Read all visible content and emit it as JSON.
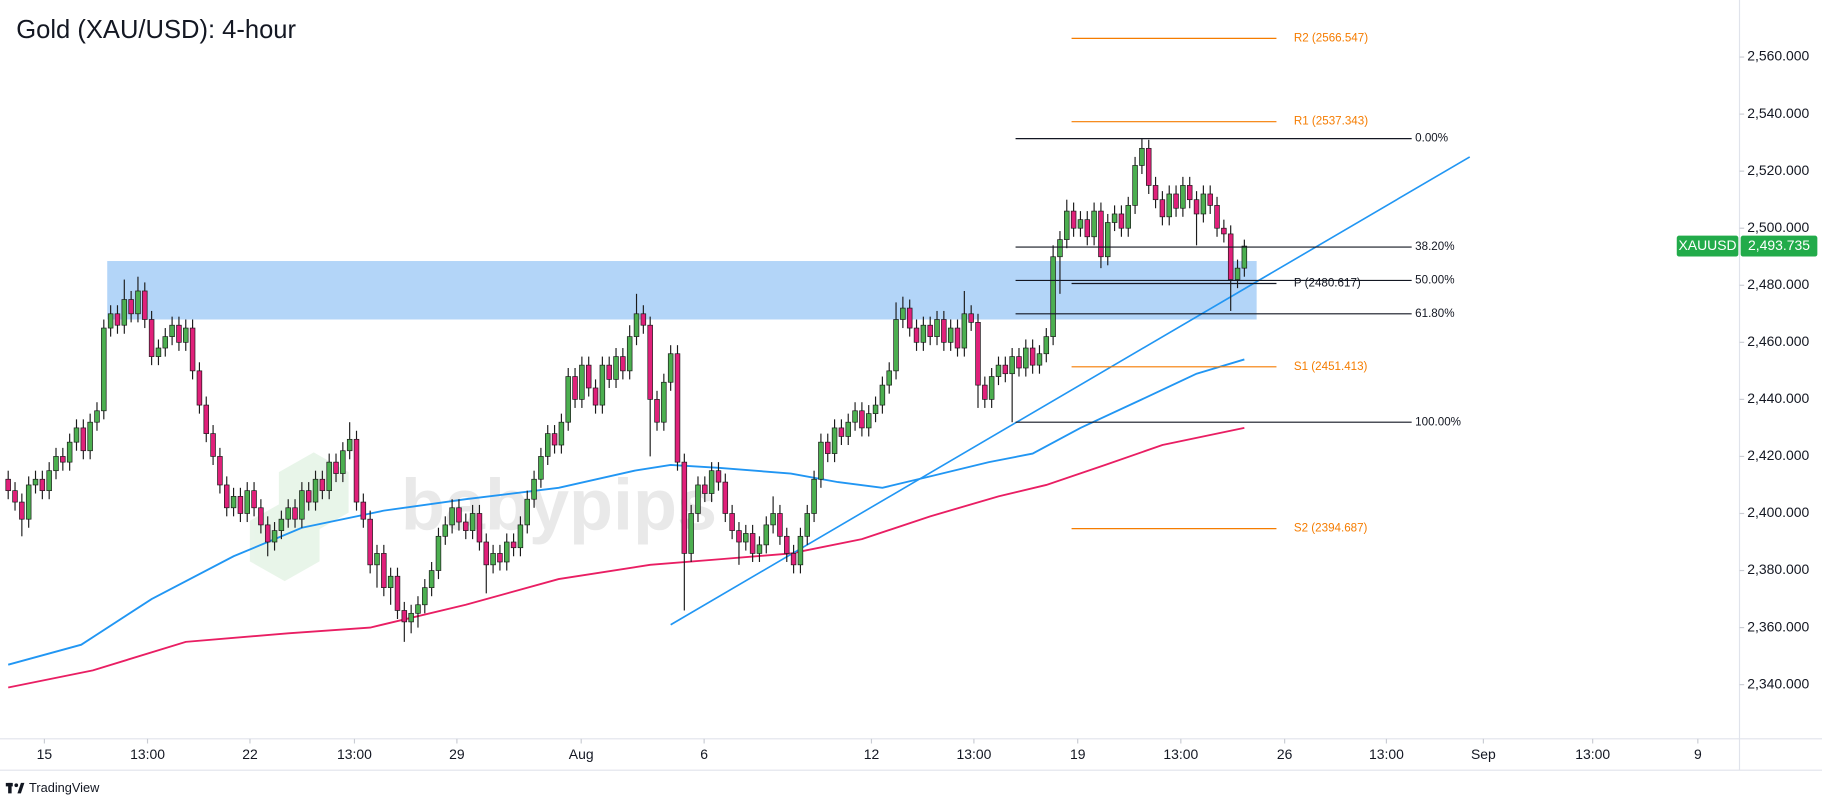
{
  "chart_data": {
    "type": "candlestick",
    "title": "Gold (XAU/USD): 4-hour",
    "watermark": "babypips",
    "footer": "TradingView",
    "xlim": [
      -1.2,
      253.5
    ],
    "ylim": [
      2321,
      2580
    ],
    "xticks": [
      {
        "value": 5.3,
        "label": "15"
      },
      {
        "value": 20.4,
        "label": "13:00"
      },
      {
        "value": 35.4,
        "label": "22"
      },
      {
        "value": 50.7,
        "label": "13:00"
      },
      {
        "value": 65.7,
        "label": "29"
      },
      {
        "value": 83.9,
        "label": "Aug"
      },
      {
        "value": 101.9,
        "label": "6"
      },
      {
        "value": 126.4,
        "label": "12"
      },
      {
        "value": 141.4,
        "label": "13:00"
      },
      {
        "value": 156.6,
        "label": "19"
      },
      {
        "value": 171.7,
        "label": "13:00"
      },
      {
        "value": 186.9,
        "label": "26"
      },
      {
        "value": 201.8,
        "label": "13:00"
      },
      {
        "value": 216,
        "label": "Sep"
      },
      {
        "value": 232,
        "label": "13:00"
      },
      {
        "value": 247.4,
        "label": "9"
      }
    ],
    "yticks": [
      {
        "value": 2340,
        "label": "2,340.000"
      },
      {
        "value": 2360,
        "label": "2,360.000"
      },
      {
        "value": 2380,
        "label": "2,380.000"
      },
      {
        "value": 2400,
        "label": "2,400.000"
      },
      {
        "value": 2420,
        "label": "2,420.000"
      },
      {
        "value": 2440,
        "label": "2,440.000"
      },
      {
        "value": 2460,
        "label": "2,460.000"
      },
      {
        "value": 2480,
        "label": "2,480.000"
      },
      {
        "value": 2500,
        "label": "2,500.000"
      },
      {
        "value": 2520,
        "label": "2,520.000"
      },
      {
        "value": 2540,
        "label": "2,540.000"
      },
      {
        "value": 2560,
        "label": "2,560.000"
      }
    ],
    "candles": {
      "name": "XAUUSD",
      "up_color": "#4caf50",
      "down_color": "#e0207a",
      "tag_color": "#22ab4a",
      "last_label": "2,493.735",
      "open": [
        2412,
        2408,
        2404,
        2398,
        2410,
        2412,
        2408,
        2415,
        2420,
        2418,
        2425,
        2430,
        2422,
        2432,
        2436,
        2465,
        2470,
        2466,
        2475,
        2470,
        2478,
        2468,
        2455,
        2458,
        2462,
        2466,
        2460,
        2465,
        2450,
        2438,
        2428,
        2420,
        2410,
        2402,
        2406,
        2400,
        2408,
        2402,
        2396,
        2390,
        2394,
        2398,
        2402,
        2398,
        2408,
        2404,
        2412,
        2408,
        2418,
        2414,
        2422,
        2426,
        2404,
        2398,
        2382,
        2386,
        2374,
        2378,
        2366,
        2362,
        2365,
        2368,
        2374,
        2380,
        2392,
        2396,
        2402,
        2397,
        2394,
        2400,
        2390,
        2382,
        2386,
        2383,
        2390,
        2388,
        2396,
        2405,
        2412,
        2420,
        2428,
        2424,
        2432,
        2448,
        2440,
        2452,
        2444,
        2438,
        2452,
        2447,
        2455,
        2450,
        2462,
        2470,
        2466,
        2440,
        2432,
        2446,
        2456,
        2418,
        2386,
        2400,
        2410,
        2407,
        2415,
        2411,
        2400,
        2394,
        2390,
        2393,
        2386,
        2389,
        2396,
        2400,
        2392,
        2386,
        2382,
        2392,
        2400,
        2412,
        2425,
        2421,
        2430,
        2427,
        2432,
        2436,
        2430,
        2435,
        2438,
        2445,
        2450,
        2468,
        2472,
        2465,
        2460,
        2466,
        2462,
        2468,
        2460,
        2465,
        2458,
        2470,
        2467,
        2445,
        2440,
        2448,
        2452,
        2449,
        2455,
        2451,
        2458,
        2452,
        2456,
        2462,
        2490,
        2496,
        2506,
        2500,
        2503,
        2497,
        2506,
        2490,
        2502,
        2505,
        2500,
        2508,
        2522,
        2528,
        2515,
        2510,
        2504,
        2512,
        2507,
        2515,
        2510,
        2505,
        2512,
        2508,
        2500,
        2498,
        2482,
        2486
      ],
      "high": [
        2415,
        2411,
        2407,
        2413,
        2415,
        2415,
        2418,
        2423,
        2423,
        2428,
        2433,
        2433,
        2435,
        2439,
        2468,
        2473,
        2473,
        2482,
        2478,
        2483,
        2481,
        2471,
        2461,
        2465,
        2469,
        2469,
        2468,
        2468,
        2453,
        2441,
        2431,
        2423,
        2413,
        2409,
        2409,
        2411,
        2411,
        2405,
        2399,
        2397,
        2401,
        2405,
        2405,
        2411,
        2411,
        2415,
        2415,
        2421,
        2421,
        2425,
        2432,
        2429,
        2407,
        2401,
        2389,
        2389,
        2381,
        2381,
        2369,
        2368,
        2371,
        2377,
        2383,
        2395,
        2399,
        2405,
        2405,
        2400,
        2403,
        2403,
        2393,
        2389,
        2389,
        2393,
        2393,
        2399,
        2408,
        2415,
        2423,
        2431,
        2431,
        2435,
        2451,
        2451,
        2455,
        2455,
        2447,
        2455,
        2455,
        2458,
        2458,
        2466,
        2477,
        2473,
        2469,
        2443,
        2449,
        2459,
        2459,
        2421,
        2403,
        2413,
        2413,
        2418,
        2418,
        2414,
        2403,
        2397,
        2396,
        2396,
        2392,
        2399,
        2406,
        2403,
        2395,
        2389,
        2395,
        2403,
        2415,
        2428,
        2428,
        2433,
        2433,
        2435,
        2439,
        2439,
        2438,
        2441,
        2448,
        2453,
        2474,
        2476,
        2475,
        2468,
        2469,
        2469,
        2471,
        2471,
        2468,
        2468,
        2478,
        2473,
        2470,
        2448,
        2451,
        2455,
        2455,
        2458,
        2458,
        2461,
        2461,
        2459,
        2465,
        2494,
        2499,
        2510,
        2509,
        2506,
        2506,
        2509,
        2509,
        2505,
        2508,
        2508,
        2511,
        2525,
        2531.4,
        2531,
        2518,
        2513,
        2515,
        2515,
        2518,
        2518,
        2513,
        2515,
        2515,
        2511,
        2503,
        2501,
        2489,
        2496
      ],
      "low": [
        2405,
        2401,
        2392,
        2395,
        2407,
        2405,
        2405,
        2412,
        2415,
        2415,
        2422,
        2419,
        2419,
        2429,
        2433,
        2462,
        2463,
        2463,
        2467,
        2467,
        2465,
        2452,
        2452,
        2455,
        2459,
        2457,
        2457,
        2447,
        2435,
        2425,
        2417,
        2407,
        2399,
        2399,
        2397,
        2397,
        2399,
        2393,
        2385,
        2387,
        2391,
        2395,
        2395,
        2395,
        2401,
        2401,
        2405,
        2405,
        2411,
        2411,
        2419,
        2401,
        2395,
        2379,
        2374,
        2371,
        2368,
        2363,
        2355,
        2358,
        2360,
        2365,
        2371,
        2377,
        2389,
        2393,
        2394,
        2391,
        2391,
        2387,
        2372,
        2379,
        2380,
        2380,
        2385,
        2385,
        2393,
        2402,
        2409,
        2417,
        2421,
        2421,
        2429,
        2437,
        2437,
        2441,
        2435,
        2435,
        2444,
        2444,
        2447,
        2447,
        2459,
        2463,
        2420,
        2429,
        2429,
        2443,
        2415,
        2366,
        2383,
        2397,
        2404,
        2404,
        2408,
        2397,
        2391,
        2382,
        2387,
        2383,
        2383,
        2386,
        2393,
        2389,
        2383,
        2379,
        2379,
        2389,
        2397,
        2409,
        2418,
        2418,
        2424,
        2424,
        2429,
        2427,
        2427,
        2432,
        2435,
        2442,
        2447,
        2465,
        2462,
        2457,
        2457,
        2459,
        2459,
        2457,
        2457,
        2455,
        2455,
        2464,
        2437,
        2437,
        2437,
        2445,
        2446,
        2432,
        2448,
        2448,
        2449,
        2449,
        2453,
        2459,
        2477,
        2493,
        2497,
        2497,
        2494,
        2494,
        2486,
        2487,
        2499,
        2497,
        2497,
        2505,
        2519,
        2512,
        2507,
        2501,
        2501,
        2504,
        2504,
        2507,
        2494,
        2502,
        2505,
        2497,
        2495,
        2471,
        2479,
        2483
      ],
      "close": [
        2408,
        2404,
        2398,
        2410,
        2412,
        2408,
        2415,
        2420,
        2418,
        2425,
        2430,
        2422,
        2432,
        2436,
        2465,
        2470,
        2466,
        2475,
        2470,
        2478,
        2468,
        2455,
        2458,
        2462,
        2466,
        2460,
        2465,
        2450,
        2438,
        2428,
        2420,
        2410,
        2402,
        2406,
        2400,
        2408,
        2402,
        2396,
        2390,
        2394,
        2398,
        2402,
        2398,
        2408,
        2404,
        2412,
        2408,
        2418,
        2414,
        2422,
        2426,
        2404,
        2398,
        2382,
        2386,
        2374,
        2378,
        2366,
        2362,
        2365,
        2368,
        2374,
        2380,
        2392,
        2396,
        2402,
        2397,
        2394,
        2400,
        2390,
        2382,
        2386,
        2383,
        2390,
        2388,
        2396,
        2405,
        2412,
        2420,
        2428,
        2424,
        2432,
        2448,
        2440,
        2452,
        2444,
        2438,
        2452,
        2447,
        2455,
        2450,
        2462,
        2470,
        2466,
        2440,
        2432,
        2446,
        2456,
        2418,
        2386,
        2400,
        2410,
        2407,
        2415,
        2411,
        2400,
        2394,
        2390,
        2393,
        2386,
        2389,
        2396,
        2400,
        2392,
        2386,
        2382,
        2392,
        2400,
        2412,
        2425,
        2421,
        2430,
        2427,
        2432,
        2436,
        2430,
        2435,
        2438,
        2445,
        2450,
        2468,
        2472,
        2465,
        2460,
        2466,
        2462,
        2468,
        2460,
        2465,
        2458,
        2470,
        2467,
        2445,
        2440,
        2448,
        2452,
        2449,
        2455,
        2451,
        2458,
        2452,
        2456,
        2462,
        2490,
        2496,
        2506,
        2500,
        2503,
        2497,
        2506,
        2490,
        2502,
        2505,
        2500,
        2508,
        2522,
        2528,
        2515,
        2510,
        2504,
        2512,
        2507,
        2515,
        2510,
        2505,
        2512,
        2508,
        2500,
        2498,
        2482,
        2486,
        2493.735
      ]
    },
    "moving_averages": [
      {
        "color": "#2196f3",
        "x": [
          0,
          10.7,
          21,
          33,
          43,
          55,
          67,
          80.6,
          91.7,
          97,
          104,
          114.6,
          121.5,
          128,
          135,
          143.6,
          150,
          157,
          166,
          174,
          181
        ],
        "values": [
          2347,
          2354,
          2370,
          2385,
          2395,
          2401,
          2405,
          2409,
          2415,
          2417,
          2416,
          2414,
          2411,
          2409,
          2413,
          2418,
          2421,
          2430,
          2440,
          2449,
          2454
        ]
      },
      {
        "color": "#e91e63",
        "x": [
          0,
          12.4,
          26,
          41,
          53,
          67,
          80.6,
          94,
          104.4,
          114.6,
          125,
          135,
          145,
          152,
          160.6,
          169,
          181
        ],
        "values": [
          2339,
          2345,
          2355,
          2358,
          2360,
          2368,
          2377,
          2382,
          2384,
          2386,
          2391,
          2399,
          2406,
          2410,
          2417,
          2424,
          2430
        ]
      }
    ],
    "trendline": {
      "color": "#2196f3",
      "x": [
        97,
        214
      ],
      "values": [
        2361,
        2525
      ]
    },
    "zone": {
      "color": "#b3d5f8",
      "x": [
        14.5,
        182.8
      ],
      "y": [
        2468,
        2488.5
      ]
    },
    "fibonacci": {
      "color": "#131722",
      "x": [
        147.5,
        205.5
      ],
      "levels": [
        {
          "label": "0.00%",
          "value": 2531.4
        },
        {
          "label": "38.20%",
          "value": 2493.4
        },
        {
          "label": "50.00%",
          "value": 2481.7
        },
        {
          "label": "61.80%",
          "value": 2470
        },
        {
          "label": "100.00%",
          "value": 2432
        }
      ]
    },
    "pivots": {
      "x": [
        155.7,
        185.7
      ],
      "levels": [
        {
          "label": "R2 (2566.547)",
          "value": 2566.547,
          "color": "#f57c00"
        },
        {
          "label": "R1 (2537.343)",
          "value": 2537.343,
          "color": "#f57c00"
        },
        {
          "label": "P (2480.617)",
          "value": 2480.617,
          "color": "#131722"
        },
        {
          "label": "S1 (2451.413)",
          "value": 2451.413,
          "color": "#f57c00"
        },
        {
          "label": "S2 (2394.687)",
          "value": 2394.687,
          "color": "#f57c00"
        }
      ]
    }
  }
}
